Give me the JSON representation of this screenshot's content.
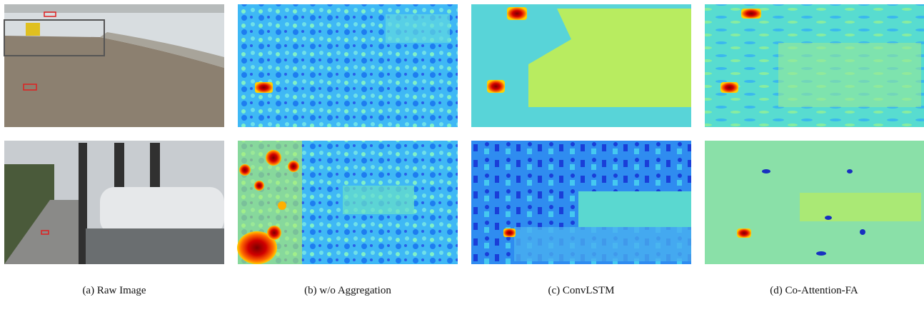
{
  "figure": {
    "captions": [
      "(a) Raw Image",
      "(b) w/o Aggregation",
      "(c) ConvLSTM",
      "(d) Co-Attention-FA"
    ]
  }
}
